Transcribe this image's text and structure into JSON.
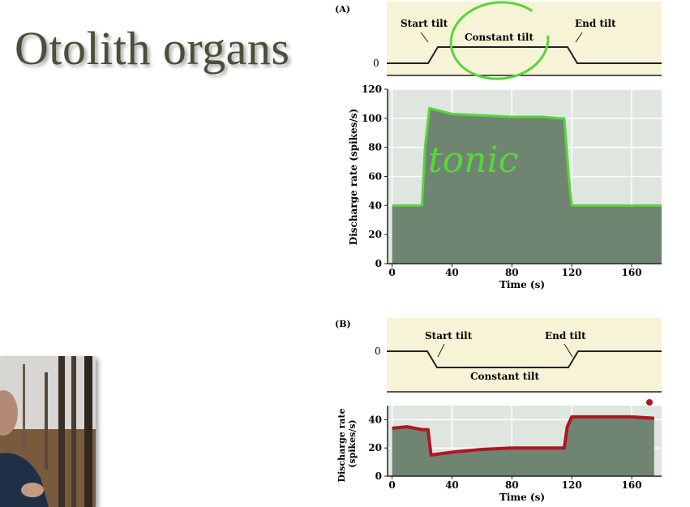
{
  "slide": {
    "title": "Otolith organs"
  },
  "panel_a": {
    "label": "(A)",
    "stimulus": {
      "zero": "0",
      "start": "Start tilt",
      "constant": "Constant tilt",
      "end": "End tilt"
    },
    "ylabel": "Discharge rate (spikes/s)",
    "xlabel": "Time (s)",
    "yticks": [
      "0",
      "20",
      "40",
      "60",
      "80",
      "100",
      "120"
    ],
    "xticks": [
      "0",
      "40",
      "80",
      "120",
      "160"
    ],
    "annotation": "tonic"
  },
  "panel_b": {
    "label": "(B)",
    "stimulus": {
      "zero": "0",
      "start": "Start tilt",
      "constant": "Constant tilt",
      "end": "End tilt"
    },
    "ylabel": "Discharge rate (spikes/s)",
    "xlabel": "Time (s)",
    "yticks": [
      "0",
      "20",
      "40"
    ],
    "xticks": [
      "0",
      "40",
      "80",
      "120",
      "160"
    ]
  },
  "chart_data": [
    {
      "type": "area",
      "title": "",
      "xlabel": "Time (s)",
      "ylabel": "Discharge rate (spikes/s)",
      "xlim": [
        -3,
        180
      ],
      "ylim": [
        0,
        120
      ],
      "x": [
        0,
        10,
        20,
        22,
        25,
        40,
        60,
        80,
        100,
        112,
        115,
        118,
        120,
        140,
        160,
        180
      ],
      "values": [
        40,
        40,
        40,
        80,
        107,
        103,
        102,
        101,
        101,
        100,
        100,
        60,
        40,
        40,
        40,
        40
      ]
    },
    {
      "type": "area",
      "title": "",
      "xlabel": "Time (s)",
      "ylabel": "Discharge rate (spikes/s)",
      "xlim": [
        -3,
        180
      ],
      "ylim": [
        0,
        50
      ],
      "x": [
        0,
        10,
        20,
        24,
        26,
        40,
        60,
        80,
        100,
        115,
        117,
        120,
        140,
        160,
        175
      ],
      "values": [
        34,
        35,
        33,
        33,
        15,
        17,
        19,
        20,
        20,
        20,
        35,
        42,
        42,
        42,
        41
      ]
    }
  ],
  "colors": {
    "fill": "#6f8571",
    "plotbg": "#dfe5df",
    "stimbg": "#f7f3d7",
    "green_ink": "#58d63a",
    "red_ink": "#b01620"
  }
}
